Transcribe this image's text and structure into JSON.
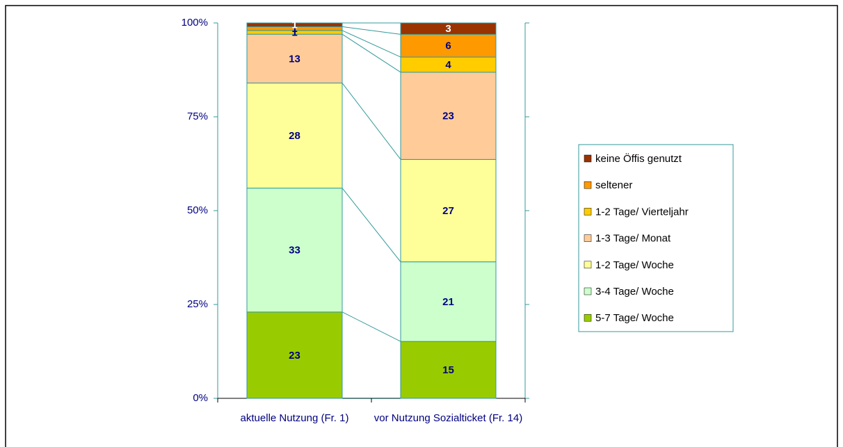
{
  "chart_data": {
    "type": "stacked100",
    "categories": [
      "aktuelle Nutzung (Fr. 1)",
      "vor Nutzung Sozialticket (Fr. 14)"
    ],
    "series": [
      {
        "name": "5-7 Tage/ Woche",
        "color": "#99cc00",
        "values": [
          23,
          15
        ]
      },
      {
        "name": "3-4 Tage/ Woche",
        "color": "#ccffcc",
        "values": [
          33,
          21
        ]
      },
      {
        "name": "1-2 Tage/ Woche",
        "color": "#ffff99",
        "values": [
          28,
          27
        ]
      },
      {
        "name": "1-3 Tage/ Monat",
        "color": "#ffcc99",
        "values": [
          13,
          23
        ]
      },
      {
        "name": "1-2 Tage/ Vierteljahr",
        "color": "#ffcc00",
        "values": [
          1,
          4
        ]
      },
      {
        "name": "seltener",
        "color": "#ff9900",
        "values": [
          1,
          6
        ]
      },
      {
        "name": "keine Öffis genutzt",
        "color": "#993300",
        "values": [
          1,
          3
        ]
      }
    ],
    "ylim": [
      0,
      100
    ],
    "yticks": [
      {
        "value": 0,
        "label": "0%"
      },
      {
        "value": 25,
        "label": "25%"
      },
      {
        "value": 50,
        "label": "50%"
      },
      {
        "value": 75,
        "label": "75%"
      },
      {
        "value": 100,
        "label": "100%"
      }
    ],
    "legend": "right"
  }
}
